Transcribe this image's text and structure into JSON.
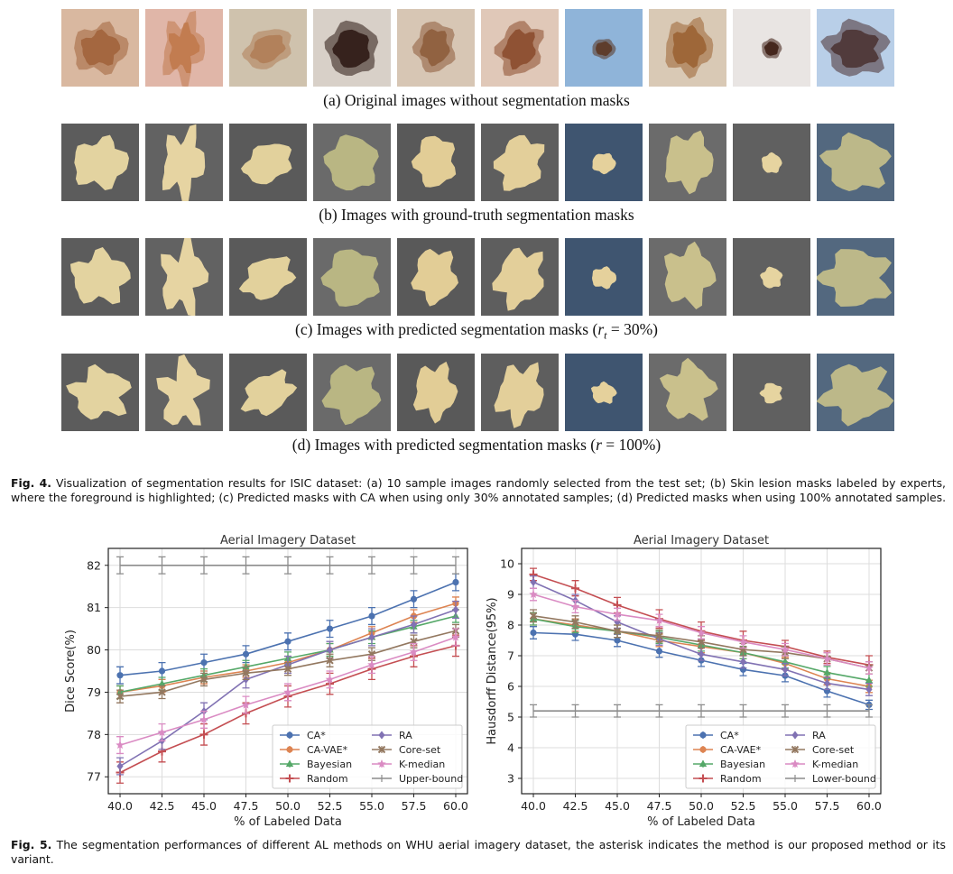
{
  "fig4": {
    "rows": [
      {
        "caption": "(a) Original images without segmentation masks",
        "kind": "original"
      },
      {
        "caption": "(b) Images with ground-truth segmentation masks",
        "kind": "gt"
      },
      {
        "caption_prefix": "(c) Images with predicted segmentation masks (",
        "caption_var": "r",
        "caption_sub": "t",
        "caption_suffix": " = 30%)",
        "kind": "pred30"
      },
      {
        "caption_prefix": "(d) Images with predicted segmentation masks (",
        "caption_var": "r",
        "caption_sub": "",
        "caption_suffix": " = 100%)",
        "kind": "pred100"
      }
    ],
    "caption_label": "Fig. 4.",
    "caption_text": " Visualization of segmentation results for ISIC dataset: (a) 10 sample images randomly selected from the test set; (b) Skin lesion masks labeled by experts, where the foreground is highlighted; (c) Predicted masks with CA when using only 30% annotated samples; (d) Predicted masks when using 100% annotated samples.",
    "colors": {
      "skin": [
        "#d9b8a0",
        "#e0b6a8",
        "#cfc2ad",
        "#d8d0c8",
        "#d7c6b4",
        "#e0c8b8",
        "#8fb4d9",
        "#d9c9b5",
        "#e9e5e3",
        "#b9cfe8"
      ],
      "lesion": [
        "#a0623a",
        "#c0784a",
        "#b07d55",
        "#2a1510",
        "#8c5a38",
        "#8a4a2a",
        "#5a3520",
        "#9a6030",
        "#3a1a10",
        "#4a3030"
      ],
      "mask_bg": [
        "#5c5c5c",
        "#626262",
        "#5a5a5a",
        "#6a6a6a",
        "#595959",
        "#5e5e5e",
        "#3f5570",
        "#6b6b6b",
        "#606060",
        "#53687f"
      ],
      "mask_fg": [
        "#e3d3a0",
        "#e6d4a2",
        "#e2d19c",
        "#b9b683",
        "#e2cd96",
        "#e3cf9a",
        "#e5d19c",
        "#c9c08c",
        "#e6d4a0",
        "#bcb889"
      ]
    }
  },
  "fig5": {
    "caption_label": "Fig. 5.",
    "caption_text": " The segmentation performances of different AL methods on WHU aerial imagery dataset, the asterisk indicates the method is our proposed method or its variant."
  },
  "chart_data": [
    {
      "type": "line",
      "title": "Aerial Imagery Dataset",
      "xlabel": "% of Labeled Data",
      "ylabel": "Dice Score(%)",
      "x": [
        40.0,
        42.5,
        45.0,
        47.5,
        50.0,
        52.5,
        55.0,
        57.5,
        60.0
      ],
      "xticks": [
        "40.0",
        "42.5",
        "45.0",
        "47.5",
        "50.0",
        "52.5",
        "55.0",
        "57.5",
        "60.0"
      ],
      "ylim": [
        76.6,
        82.4
      ],
      "yticks": [
        77,
        78,
        79,
        80,
        81,
        82
      ],
      "grid": true,
      "legend": "lower-right",
      "series": [
        {
          "name": "CA*",
          "color": "#4c72b0",
          "marker": "circle",
          "values": [
            79.4,
            79.5,
            79.7,
            79.9,
            80.2,
            80.5,
            80.8,
            81.2,
            81.6
          ],
          "err": [
            0.2,
            0.2,
            0.2,
            0.2,
            0.2,
            0.2,
            0.2,
            0.2,
            0.2
          ]
        },
        {
          "name": "CA-VAE*",
          "color": "#dd8452",
          "marker": "circle",
          "values": [
            79.0,
            79.15,
            79.35,
            79.5,
            79.7,
            80.0,
            80.4,
            80.8,
            81.1
          ],
          "err": [
            0.15,
            0.15,
            0.15,
            0.15,
            0.15,
            0.15,
            0.15,
            0.15,
            0.15
          ]
        },
        {
          "name": "Bayesian",
          "color": "#55a868",
          "marker": "triangle",
          "values": [
            79.0,
            79.2,
            79.4,
            79.6,
            79.8,
            80.0,
            80.3,
            80.55,
            80.8
          ],
          "err": [
            0.15,
            0.15,
            0.15,
            0.15,
            0.15,
            0.15,
            0.15,
            0.15,
            0.15
          ]
        },
        {
          "name": "Random",
          "color": "#c44e52",
          "marker": "plus",
          "values": [
            77.1,
            77.6,
            78.0,
            78.5,
            78.9,
            79.2,
            79.55,
            79.85,
            80.1
          ],
          "err": [
            0.25,
            0.25,
            0.25,
            0.25,
            0.25,
            0.25,
            0.25,
            0.25,
            0.25
          ]
        },
        {
          "name": "RA",
          "color": "#8172b3",
          "marker": "diamond",
          "values": [
            77.25,
            77.85,
            78.55,
            79.3,
            79.65,
            80.0,
            80.3,
            80.6,
            80.95
          ],
          "err": [
            0.2,
            0.2,
            0.2,
            0.2,
            0.2,
            0.2,
            0.2,
            0.2,
            0.2
          ]
        },
        {
          "name": "Core-set",
          "color": "#937860",
          "marker": "x",
          "values": [
            78.9,
            79.0,
            79.3,
            79.45,
            79.55,
            79.75,
            79.9,
            80.2,
            80.45
          ],
          "err": [
            0.15,
            0.15,
            0.15,
            0.15,
            0.15,
            0.15,
            0.15,
            0.15,
            0.15
          ]
        },
        {
          "name": "K-median",
          "color": "#da8bc3",
          "marker": "star",
          "values": [
            77.75,
            78.05,
            78.35,
            78.7,
            79.0,
            79.3,
            79.65,
            79.95,
            80.3
          ],
          "err": [
            0.2,
            0.2,
            0.2,
            0.2,
            0.2,
            0.2,
            0.2,
            0.2,
            0.2
          ]
        },
        {
          "name": "Upper-bound",
          "color": "#8c8c8c",
          "marker": "none",
          "values": [
            82.0,
            82.0,
            82.0,
            82.0,
            82.0,
            82.0,
            82.0,
            82.0,
            82.0
          ],
          "err": [
            0.2,
            0.2,
            0.2,
            0.2,
            0.2,
            0.2,
            0.2,
            0.2,
            0.2
          ]
        }
      ]
    },
    {
      "type": "line",
      "title": "Aerial Imagery Dataset",
      "xlabel": "% of Labeled Data",
      "ylabel": "Hausdorff Distance(95%)",
      "x": [
        40.0,
        42.5,
        45.0,
        47.5,
        50.0,
        52.5,
        55.0,
        57.5,
        60.0
      ],
      "xticks": [
        "40.0",
        "42.5",
        "45.0",
        "47.5",
        "50.0",
        "52.5",
        "55.0",
        "57.5",
        "60.0"
      ],
      "ylim": [
        2.5,
        10.5
      ],
      "yticks": [
        3,
        4,
        5,
        6,
        7,
        8,
        9,
        10
      ],
      "grid": true,
      "legend": "lower-right",
      "series": [
        {
          "name": "CA*",
          "color": "#4c72b0",
          "marker": "circle",
          "values": [
            7.75,
            7.7,
            7.5,
            7.15,
            6.85,
            6.55,
            6.35,
            5.85,
            5.4
          ],
          "err": [
            0.2,
            0.2,
            0.2,
            0.2,
            0.2,
            0.2,
            0.2,
            0.2,
            0.15
          ]
        },
        {
          "name": "CA-VAE*",
          "color": "#dd8452",
          "marker": "circle",
          "values": [
            8.2,
            8.0,
            7.8,
            7.5,
            7.3,
            7.1,
            6.75,
            6.25,
            6.0
          ],
          "err": [
            0.2,
            0.2,
            0.2,
            0.2,
            0.2,
            0.2,
            0.2,
            0.2,
            0.2
          ]
        },
        {
          "name": "Bayesian",
          "color": "#55a868",
          "marker": "triangle",
          "values": [
            8.2,
            7.95,
            7.8,
            7.6,
            7.35,
            7.1,
            6.8,
            6.45,
            6.2
          ],
          "err": [
            0.2,
            0.2,
            0.2,
            0.2,
            0.2,
            0.2,
            0.2,
            0.2,
            0.2
          ]
        },
        {
          "name": "Random",
          "color": "#c44e52",
          "marker": "plus",
          "values": [
            9.65,
            9.2,
            8.65,
            8.2,
            7.8,
            7.5,
            7.3,
            6.95,
            6.7
          ],
          "err": [
            0.2,
            0.25,
            0.25,
            0.3,
            0.3,
            0.3,
            0.2,
            0.2,
            0.3
          ]
        },
        {
          "name": "RA",
          "color": "#8172b3",
          "marker": "diamond",
          "values": [
            9.4,
            8.8,
            8.1,
            7.55,
            7.05,
            6.8,
            6.55,
            6.1,
            5.9
          ],
          "err": [
            0.2,
            0.2,
            0.2,
            0.2,
            0.2,
            0.2,
            0.2,
            0.2,
            0.2
          ]
        },
        {
          "name": "Core-set",
          "color": "#937860",
          "marker": "x",
          "values": [
            8.3,
            8.1,
            7.8,
            7.65,
            7.45,
            7.2,
            7.1,
            6.9,
            6.6
          ],
          "err": [
            0.2,
            0.2,
            0.2,
            0.2,
            0.2,
            0.2,
            0.2,
            0.2,
            0.2
          ]
        },
        {
          "name": "K-median",
          "color": "#da8bc3",
          "marker": "star",
          "values": [
            9.0,
            8.6,
            8.35,
            8.15,
            7.75,
            7.45,
            7.2,
            6.9,
            6.6
          ],
          "err": [
            0.2,
            0.2,
            0.2,
            0.2,
            0.2,
            0.2,
            0.2,
            0.2,
            0.2
          ]
        },
        {
          "name": "Lower-bound",
          "color": "#8c8c8c",
          "marker": "none",
          "values": [
            5.2,
            5.2,
            5.2,
            5.2,
            5.2,
            5.2,
            5.2,
            5.2,
            5.2
          ],
          "err": [
            0.2,
            0.2,
            0.2,
            0.2,
            0.2,
            0.2,
            0.2,
            0.2,
            0.2
          ]
        }
      ]
    }
  ]
}
